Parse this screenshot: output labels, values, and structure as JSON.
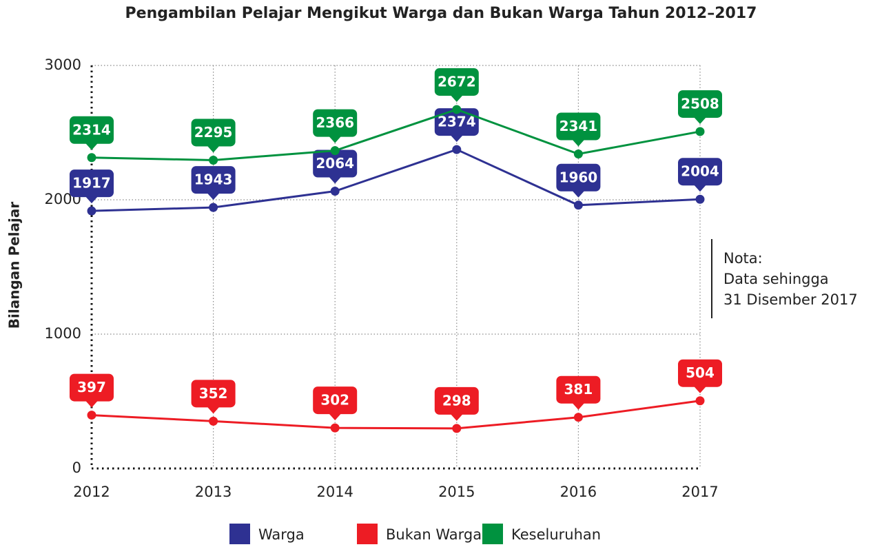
{
  "chart_data": {
    "type": "line",
    "title": "Pengambilan Pelajar Mengikut Warga dan Bukan Warga Tahun 2012–2017",
    "y_label": "Bilangan Pelajar",
    "annotation": [
      "Nota:",
      "Data sehingga",
      "31 Disember 2017"
    ],
    "categories": [
      "2012",
      "2013",
      "2014",
      "2015",
      "2016",
      "2017"
    ],
    "series": [
      {
        "name": "Warga",
        "color": "#2e3192",
        "values": [
          1917,
          1943,
          2064,
          2374,
          1960,
          2004
        ]
      },
      {
        "name": "Bukan Warga",
        "color": "#ed1c24",
        "values": [
          397,
          352,
          302,
          298,
          381,
          504
        ]
      },
      {
        "name": "Keseluruhan",
        "color": "#00923f",
        "values": [
          2314,
          2295,
          2366,
          2672,
          2341,
          2508
        ]
      }
    ],
    "ylim": [
      0,
      3000
    ],
    "yticks": [
      0,
      1000,
      2000,
      3000
    ],
    "grid": true,
    "legend": "bottom"
  }
}
